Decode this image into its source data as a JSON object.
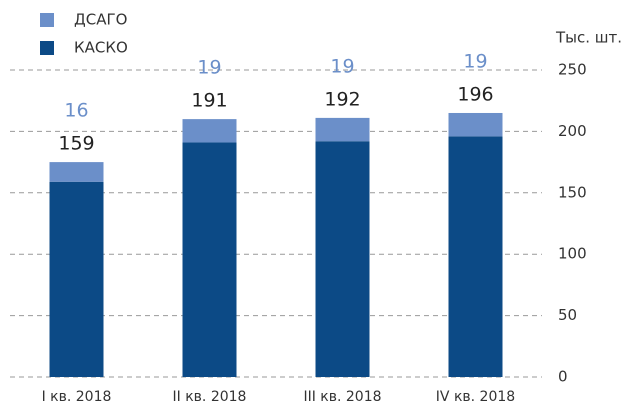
{
  "chart_data": {
    "type": "stacked_bar",
    "y_axis_label": "Тыс. шт.",
    "categories": [
      "I кв. 2018",
      "II кв. 2018",
      "III кв. 2018",
      "IV кв. 2018"
    ],
    "series": [
      {
        "name": "КАСКО",
        "color": "#0c4a86",
        "values": [
          159,
          191,
          192,
          196
        ]
      },
      {
        "name": "ДСАГО",
        "color": "#6b8fc9",
        "values": [
          16,
          19,
          19,
          19
        ]
      }
    ],
    "ylim": [
      0,
      250
    ],
    "yticks": [
      0,
      50,
      100,
      150,
      200,
      250
    ],
    "grid": true,
    "legend": "top-left"
  }
}
